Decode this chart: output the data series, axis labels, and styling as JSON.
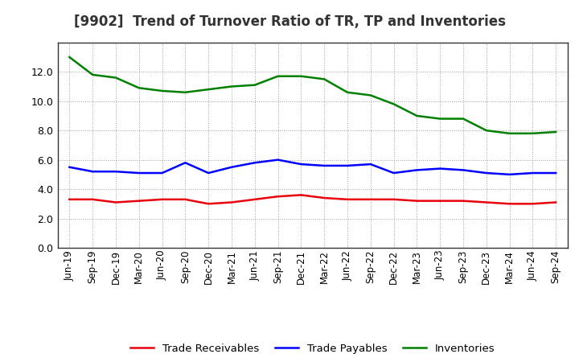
{
  "title": "[9902]  Trend of Turnover Ratio of TR, TP and Inventories",
  "x_labels": [
    "Jun-19",
    "Sep-19",
    "Dec-19",
    "Mar-20",
    "Jun-20",
    "Sep-20",
    "Dec-20",
    "Mar-21",
    "Jun-21",
    "Sep-21",
    "Dec-21",
    "Mar-22",
    "Jun-22",
    "Sep-22",
    "Dec-22",
    "Mar-23",
    "Jun-23",
    "Sep-23",
    "Dec-23",
    "Mar-24",
    "Jun-24",
    "Sep-24"
  ],
  "trade_receivables": [
    3.3,
    3.3,
    3.1,
    3.2,
    3.3,
    3.3,
    3.0,
    3.1,
    3.3,
    3.5,
    3.6,
    3.4,
    3.3,
    3.3,
    3.3,
    3.2,
    3.2,
    3.2,
    3.1,
    3.0,
    3.0,
    3.1
  ],
  "trade_payables": [
    5.5,
    5.2,
    5.2,
    5.1,
    5.1,
    5.8,
    5.1,
    5.5,
    5.8,
    6.0,
    5.7,
    5.6,
    5.6,
    5.7,
    5.1,
    5.3,
    5.4,
    5.3,
    5.1,
    5.0,
    5.1,
    5.1
  ],
  "inventories": [
    13.0,
    11.8,
    11.6,
    10.9,
    10.7,
    10.6,
    10.8,
    11.0,
    11.1,
    11.7,
    11.7,
    11.5,
    10.6,
    10.4,
    9.8,
    9.0,
    8.8,
    8.8,
    8.0,
    7.8,
    7.8,
    7.9
  ],
  "color_tr": "#e8000d",
  "color_tp": "#0000ff",
  "color_inv": "#008000",
  "ylim": [
    0.0,
    14.0
  ],
  "yticks": [
    0.0,
    2.0,
    4.0,
    6.0,
    8.0,
    10.0,
    12.0
  ],
  "legend_tr": "Trade Receivables",
  "legend_tp": "Trade Payables",
  "legend_inv": "Inventories",
  "background_color": "#ffffff",
  "grid_color": "#888888",
  "title_fontsize": 12,
  "axis_fontsize": 8.5,
  "legend_fontsize": 9.5,
  "linewidth": 1.8
}
